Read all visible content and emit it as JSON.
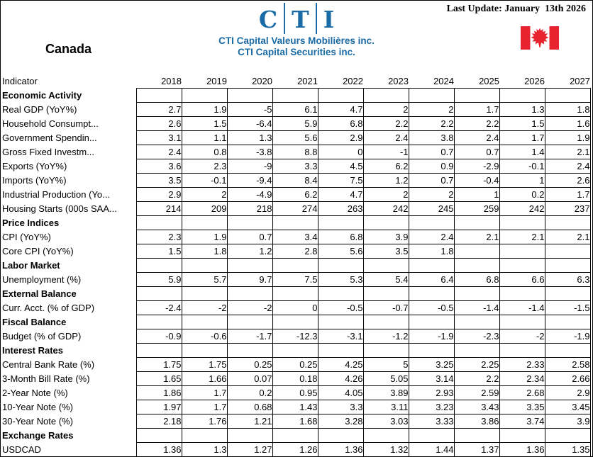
{
  "header": {
    "last_update": "Last Update: January  13th 2026",
    "logo": {
      "letters": [
        "C",
        "T",
        "I"
      ]
    },
    "company_line1": "CTI Capital Valeurs Mobilières inc.",
    "company_line2": "CTI Capital Securities inc.",
    "country": "Canada",
    "colors": {
      "logo_blue": "#1a6aa5",
      "flag_red": "#e8232f"
    }
  },
  "table": {
    "indicator_label": "Indicator",
    "years": [
      "2018",
      "2019",
      "2020",
      "2021",
      "2022",
      "2023",
      "2024",
      "2025",
      "2026",
      "2027"
    ],
    "sections": [
      {
        "title": "Economic Activity",
        "rows": [
          {
            "label": "Real GDP (YoY%)",
            "values": [
              "2.7",
              "1.9",
              "-5",
              "6.1",
              "4.7",
              "2",
              "2",
              "1.7",
              "1.3",
              "1.8"
            ]
          },
          {
            "label": "Household Consumpt...",
            "values": [
              "2.6",
              "1.5",
              "-6.4",
              "5.9",
              "6.8",
              "2.2",
              "2.2",
              "2.2",
              "1.5",
              "1.6"
            ]
          },
          {
            "label": "Government Spendin...",
            "values": [
              "3.1",
              "1.1",
              "1.3",
              "5.6",
              "2.9",
              "2.4",
              "3.8",
              "2.4",
              "1.7",
              "1.9"
            ]
          },
          {
            "label": "Gross Fixed Investm...",
            "values": [
              "2.4",
              "0.8",
              "-3.8",
              "8.8",
              "0",
              "-1",
              "0.7",
              "0.7",
              "1.4",
              "2.1"
            ]
          },
          {
            "label": "Exports (YoY%)",
            "values": [
              "3.6",
              "2.3",
              "-9",
              "3.3",
              "4.5",
              "6.2",
              "0.9",
              "-2.9",
              "-0.1",
              "2.4"
            ]
          },
          {
            "label": "Imports (YoY%)",
            "values": [
              "3.5",
              "-0.1",
              "-9.4",
              "8.4",
              "7.5",
              "1.2",
              "0.7",
              "-0.4",
              "1",
              "2.6"
            ]
          },
          {
            "label": "Industrial Production (Yo...",
            "values": [
              "2.9",
              "2",
              "-4.9",
              "6.2",
              "4.7",
              "2",
              "2",
              "1",
              "0.2",
              "1.7"
            ]
          },
          {
            "label": "Housing Starts (000s SAA...",
            "values": [
              "214",
              "209",
              "218",
              "274",
              "263",
              "242",
              "245",
              "259",
              "242",
              "237"
            ]
          }
        ]
      },
      {
        "title": "Price Indices",
        "rows": [
          {
            "label": "CPI (YoY%)",
            "values": [
              "2.3",
              "1.9",
              "0.7",
              "3.4",
              "6.8",
              "3.9",
              "2.4",
              "2.1",
              "2.1",
              "2.1"
            ]
          },
          {
            "label": "Core CPI (YoY%)",
            "values": [
              "1.5",
              "1.8",
              "1.2",
              "2.8",
              "5.6",
              "3.5",
              "1.8",
              "",
              "",
              ""
            ]
          }
        ]
      },
      {
        "title": "Labor Market",
        "rows": [
          {
            "label": "Unemployment (%)",
            "values": [
              "5.9",
              "5.7",
              "9.7",
              "7.5",
              "5.3",
              "5.4",
              "6.4",
              "6.8",
              "6.6",
              "6.3"
            ]
          }
        ]
      },
      {
        "title": "External Balance",
        "rows": [
          {
            "label": "Curr. Acct. (% of GDP)",
            "values": [
              "-2.4",
              "-2",
              "-2",
              "0",
              "-0.5",
              "-0.7",
              "-0.5",
              "-1.4",
              "-1.4",
              "-1.5"
            ]
          }
        ]
      },
      {
        "title": "Fiscal Balance",
        "rows": [
          {
            "label": "Budget (% of GDP)",
            "values": [
              "-0.9",
              "-0.6",
              "-1.7",
              "-12.3",
              "-3.1",
              "-1.2",
              "-1.9",
              "-2.3",
              "-2",
              "-1.9"
            ]
          }
        ]
      },
      {
        "title": "Interest Rates",
        "rows": [
          {
            "label": "Central Bank Rate (%)",
            "values": [
              "1.75",
              "1.75",
              "0.25",
              "0.25",
              "4.25",
              "5",
              "3.25",
              "2.25",
              "2.33",
              "2.58"
            ]
          },
          {
            "label": "3-Month Bill Rate (%)",
            "values": [
              "1.65",
              "1.66",
              "0.07",
              "0.18",
              "4.26",
              "5.05",
              "3.14",
              "2.2",
              "2.34",
              "2.66"
            ]
          },
          {
            "label": "2-Year Note (%)",
            "values": [
              "1.86",
              "1.7",
              "0.2",
              "0.95",
              "4.05",
              "3.89",
              "2.93",
              "2.59",
              "2.68",
              "2.9"
            ]
          },
          {
            "label": "10-Year Note (%)",
            "values": [
              "1.97",
              "1.7",
              "0.68",
              "1.43",
              "3.3",
              "3.11",
              "3.23",
              "3.43",
              "3.35",
              "3.45"
            ]
          },
          {
            "label": "30-Year Note (%)",
            "values": [
              "2.18",
              "1.76",
              "1.21",
              "1.68",
              "3.28",
              "3.03",
              "3.33",
              "3.86",
              "3.74",
              "3.9"
            ]
          }
        ]
      },
      {
        "title": "Exchange Rates",
        "rows": [
          {
            "label": "USDCAD",
            "values": [
              "1.36",
              "1.3",
              "1.27",
              "1.26",
              "1.36",
              "1.32",
              "1.44",
              "1.37",
              "1.36",
              "1.35"
            ]
          }
        ]
      }
    ]
  }
}
